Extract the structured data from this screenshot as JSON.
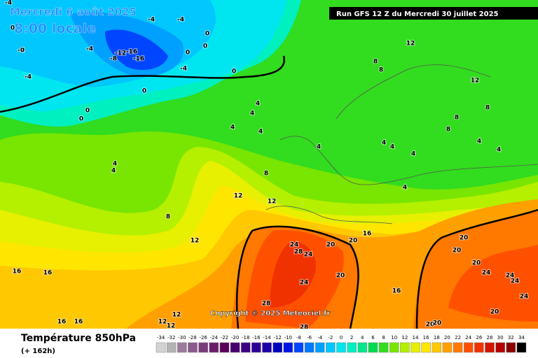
{
  "header": {
    "date": "Mercredi 6 août 2025",
    "time": "8:00 locale",
    "run": "Run GFS 12 Z du Mercredi 30 juillet 2025"
  },
  "copyright": "Copyright © 2025 Meteociel.fr",
  "legend": {
    "title": "Température 850hPa",
    "subtitle": "(+ 162h)",
    "scale": [
      -34,
      -32,
      -30,
      -28,
      -26,
      -24,
      -22,
      -20,
      -18,
      -16,
      -14,
      -12,
      -10,
      -8,
      -6,
      -4,
      -2,
      0,
      2,
      4,
      6,
      8,
      10,
      12,
      14,
      16,
      18,
      20,
      22,
      24,
      26,
      28,
      30,
      32,
      34
    ],
    "colors": [
      "#d2d2d2",
      "#b4b4b4",
      "#9c7c9c",
      "#8c5a8c",
      "#7a3c7a",
      "#6a1e6a",
      "#5a005a",
      "#46006e",
      "#3c0082",
      "#2d0096",
      "#1e00aa",
      "#0000be",
      "#0014e6",
      "#0046ff",
      "#0078ff",
      "#00a0ff",
      "#00c8ff",
      "#00e6f0",
      "#00f0c0",
      "#00e68c",
      "#00dc50",
      "#32dc1e",
      "#78e600",
      "#b4f000",
      "#e6f000",
      "#ffe600",
      "#ffc800",
      "#ffa000",
      "#ff7800",
      "#ff5000",
      "#f03200",
      "#d21400",
      "#b40000",
      "#8c0000",
      "#000000"
    ]
  },
  "contour_labels": [
    "-4",
    "0",
    "-4",
    "-4",
    "0",
    "-8",
    "-12",
    "-16",
    "-16",
    "-4",
    "0",
    "0",
    "-4",
    "0",
    "0",
    "-4",
    "-4",
    "0",
    "0",
    "0",
    "12",
    "8",
    "8",
    "12",
    "4",
    "4",
    "4",
    "4",
    "4",
    "8",
    "8",
    "4",
    "4",
    "4",
    "4",
    "4",
    "4",
    "8",
    "12",
    "12",
    "8",
    "12",
    "16",
    "16",
    "16",
    "16",
    "12",
    "12",
    "12",
    "24",
    "28",
    "24",
    "20",
    "20",
    "24",
    "20",
    "28",
    "28",
    "16",
    "16",
    "20",
    "20",
    "20",
    "24",
    "24",
    "24",
    "24",
    "20",
    "20",
    "20",
    "4",
    "8",
    "4"
  ]
}
